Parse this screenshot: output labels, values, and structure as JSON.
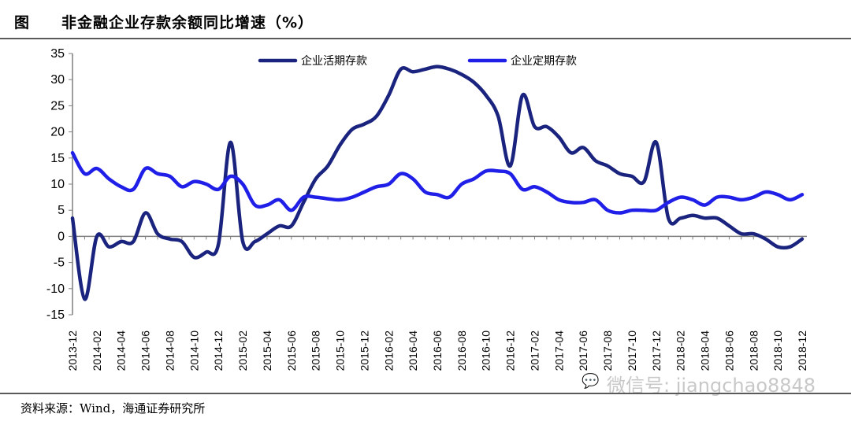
{
  "header": {
    "fig_label": "图",
    "title": "非金融企业存款余额同比增速（%）"
  },
  "footer": {
    "source": "资料来源：Wind，海通证券研究所",
    "watermark": "微信号: jiangchao8848"
  },
  "colors": {
    "series_current": "#1a237e",
    "series_fixed": "#1f1fe8",
    "axis": "#7f7f7f",
    "rule": "#5a5a5a"
  },
  "chart_data": {
    "type": "line",
    "title": "非金融企业存款余额同比增速（%）",
    "xlabel": "",
    "ylabel": "",
    "ylim": [
      -15,
      35
    ],
    "yticks": [
      35,
      30,
      25,
      20,
      15,
      10,
      5,
      0,
      -5,
      -10,
      -15
    ],
    "x_tick_labels": [
      "2013-12",
      "2014-02",
      "2014-04",
      "2014-06",
      "2014-08",
      "2014-10",
      "2014-12",
      "2015-02",
      "2015-04",
      "2015-06",
      "2015-08",
      "2015-10",
      "2015-12",
      "2016-02",
      "2016-04",
      "2016-06",
      "2016-08",
      "2016-10",
      "2016-12",
      "2017-02",
      "2017-04",
      "2017-06",
      "2017-08",
      "2017-10",
      "2017-12",
      "2018-02",
      "2018-04",
      "2018-06",
      "2018-08",
      "2018-10",
      "2018-12"
    ],
    "categories": [
      "2013-12",
      "2014-01",
      "2014-02",
      "2014-03",
      "2014-04",
      "2014-05",
      "2014-06",
      "2014-07",
      "2014-08",
      "2014-09",
      "2014-10",
      "2014-11",
      "2014-12",
      "2015-01",
      "2015-02",
      "2015-03",
      "2015-04",
      "2015-05",
      "2015-06",
      "2015-07",
      "2015-08",
      "2015-09",
      "2015-10",
      "2015-11",
      "2015-12",
      "2016-01",
      "2016-02",
      "2016-03",
      "2016-04",
      "2016-05",
      "2016-06",
      "2016-07",
      "2016-08",
      "2016-09",
      "2016-10",
      "2016-11",
      "2016-12",
      "2017-01",
      "2017-02",
      "2017-03",
      "2017-04",
      "2017-05",
      "2017-06",
      "2017-07",
      "2017-08",
      "2017-09",
      "2017-10",
      "2017-11",
      "2017-12",
      "2018-01",
      "2018-02",
      "2018-03",
      "2018-04",
      "2018-05",
      "2018-06",
      "2018-07",
      "2018-08",
      "2018-09",
      "2018-10",
      "2018-11",
      "2018-12"
    ],
    "legend_position": "top",
    "series": [
      {
        "name": "企业活期存款",
        "color": "#1a237e",
        "values": [
          3.5,
          -12,
          0,
          -2,
          -1,
          -1,
          4.5,
          0.5,
          -0.5,
          -1,
          -4,
          -3,
          -1.5,
          18,
          -1,
          -1,
          0.5,
          2,
          2,
          6.5,
          11,
          13.5,
          17.5,
          20.5,
          21.5,
          23,
          27,
          32,
          31.5,
          32,
          32.5,
          32,
          31,
          29.5,
          27,
          23,
          13.5,
          27,
          21,
          21,
          19,
          16,
          17,
          14.5,
          13.5,
          12,
          11.5,
          10.5,
          18,
          3.5,
          3.5,
          4,
          3.5,
          3.5,
          2,
          0.5,
          0.5,
          -0.5,
          -2,
          -2,
          -0.5
        ]
      },
      {
        "name": "企业定期存款",
        "color": "#1f1fe8",
        "values": [
          16,
          12,
          13,
          11,
          9.5,
          9,
          13,
          12,
          11.5,
          9.5,
          10.5,
          10,
          9,
          11.5,
          10,
          6,
          6,
          7,
          5,
          7.5,
          7.5,
          7.2,
          7,
          7.5,
          8.5,
          9.5,
          10,
          12,
          11,
          8.5,
          8,
          7.5,
          10,
          11,
          12.5,
          12.5,
          12,
          9,
          9.5,
          8.5,
          7,
          6.5,
          6.5,
          7,
          5,
          4.5,
          5,
          5,
          5,
          6.5,
          7.5,
          7,
          6,
          7.5,
          7.5,
          7,
          7.5,
          8.5,
          8,
          7,
          8
        ]
      }
    ]
  }
}
